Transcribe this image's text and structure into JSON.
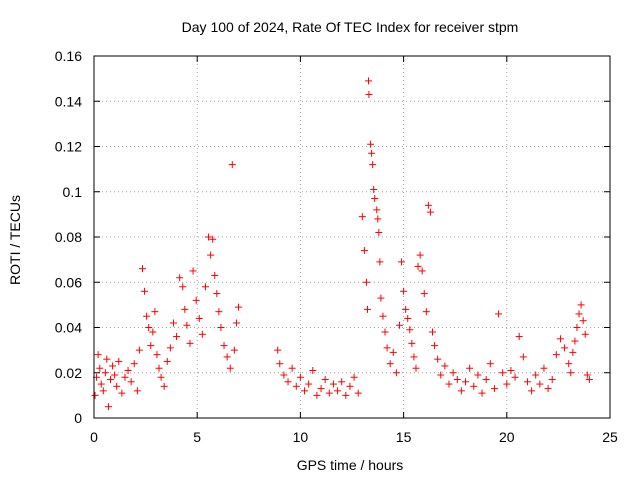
{
  "chart_data": {
    "type": "scatter",
    "title": "Day 100 of 2024, Rate Of TEC Index for receiver stpm",
    "xlabel": "GPS time / hours",
    "ylabel": "ROTI / TECUs",
    "xlim": [
      0,
      25
    ],
    "ylim": [
      0,
      0.16
    ],
    "x_ticks": [
      0,
      5,
      10,
      15,
      20,
      25
    ],
    "y_ticks": [
      0,
      0.02,
      0.04,
      0.06,
      0.08,
      0.1,
      0.12,
      0.14,
      0.16
    ],
    "x_tick_labels": [
      "0",
      "5",
      "10",
      "15",
      "20",
      "25"
    ],
    "y_tick_labels": [
      "0",
      "0.02",
      "0.04",
      "0.06",
      "0.08",
      "0.1",
      "0.12",
      "0.14",
      "0.16"
    ],
    "grid": true,
    "marker": "+",
    "colors": {
      "series": "#ff0000",
      "axis": "#000000",
      "grid": "#a0a0a0"
    },
    "series": [
      {
        "name": "ROTI",
        "points": [
          [
            0.05,
            0.01
          ],
          [
            0.12,
            0.018
          ],
          [
            0.2,
            0.028
          ],
          [
            0.28,
            0.022
          ],
          [
            0.35,
            0.015
          ],
          [
            0.45,
            0.012
          ],
          [
            0.55,
            0.02
          ],
          [
            0.62,
            0.026
          ],
          [
            0.7,
            0.005
          ],
          [
            0.8,
            0.017
          ],
          [
            0.9,
            0.023
          ],
          [
            1.0,
            0.019
          ],
          [
            1.1,
            0.014
          ],
          [
            1.2,
            0.025
          ],
          [
            1.35,
            0.011
          ],
          [
            1.5,
            0.018
          ],
          [
            1.65,
            0.021
          ],
          [
            1.8,
            0.016
          ],
          [
            1.95,
            0.024
          ],
          [
            2.1,
            0.012
          ],
          [
            2.2,
            0.03
          ],
          [
            2.35,
            0.066
          ],
          [
            2.45,
            0.056
          ],
          [
            2.55,
            0.045
          ],
          [
            2.65,
            0.04
          ],
          [
            2.75,
            0.032
          ],
          [
            2.85,
            0.038
          ],
          [
            2.95,
            0.047
          ],
          [
            3.05,
            0.028
          ],
          [
            3.15,
            0.022
          ],
          [
            3.25,
            0.018
          ],
          [
            3.4,
            0.014
          ],
          [
            3.55,
            0.025
          ],
          [
            3.7,
            0.031
          ],
          [
            3.85,
            0.042
          ],
          [
            4.0,
            0.036
          ],
          [
            4.15,
            0.062
          ],
          [
            4.3,
            0.058
          ],
          [
            4.4,
            0.048
          ],
          [
            4.5,
            0.041
          ],
          [
            4.65,
            0.033
          ],
          [
            4.8,
            0.065
          ],
          [
            4.95,
            0.052
          ],
          [
            5.1,
            0.044
          ],
          [
            5.25,
            0.037
          ],
          [
            5.4,
            0.058
          ],
          [
            5.55,
            0.08
          ],
          [
            5.65,
            0.072
          ],
          [
            5.75,
            0.079
          ],
          [
            5.85,
            0.063
          ],
          [
            5.95,
            0.055
          ],
          [
            6.05,
            0.047
          ],
          [
            6.15,
            0.04
          ],
          [
            6.3,
            0.032
          ],
          [
            6.45,
            0.027
          ],
          [
            6.6,
            0.022
          ],
          [
            6.7,
            0.112
          ],
          [
            6.8,
            0.03
          ],
          [
            6.9,
            0.042
          ],
          [
            7.0,
            0.049
          ],
          [
            8.9,
            0.03
          ],
          [
            9.0,
            0.024
          ],
          [
            9.2,
            0.019
          ],
          [
            9.4,
            0.016
          ],
          [
            9.6,
            0.022
          ],
          [
            9.8,
            0.014
          ],
          [
            10.0,
            0.018
          ],
          [
            10.2,
            0.012
          ],
          [
            10.4,
            0.015
          ],
          [
            10.6,
            0.021
          ],
          [
            10.8,
            0.01
          ],
          [
            11.0,
            0.013
          ],
          [
            11.2,
            0.017
          ],
          [
            11.4,
            0.011
          ],
          [
            11.6,
            0.015
          ],
          [
            11.8,
            0.012
          ],
          [
            12.0,
            0.016
          ],
          [
            12.2,
            0.01
          ],
          [
            12.4,
            0.014
          ],
          [
            12.6,
            0.018
          ],
          [
            12.8,
            0.011
          ],
          [
            13.0,
            0.089
          ],
          [
            13.1,
            0.074
          ],
          [
            13.2,
            0.06
          ],
          [
            13.25,
            0.048
          ],
          [
            13.3,
            0.149
          ],
          [
            13.32,
            0.143
          ],
          [
            13.4,
            0.121
          ],
          [
            13.45,
            0.117
          ],
          [
            13.5,
            0.112
          ],
          [
            13.55,
            0.101
          ],
          [
            13.6,
            0.097
          ],
          [
            13.7,
            0.092
          ],
          [
            13.75,
            0.088
          ],
          [
            13.8,
            0.082
          ],
          [
            13.85,
            0.069
          ],
          [
            13.9,
            0.053
          ],
          [
            14.0,
            0.045
          ],
          [
            14.1,
            0.038
          ],
          [
            14.2,
            0.031
          ],
          [
            14.35,
            0.024
          ],
          [
            14.5,
            0.029
          ],
          [
            14.65,
            0.02
          ],
          [
            14.8,
            0.041
          ],
          [
            14.9,
            0.069
          ],
          [
            15.0,
            0.056
          ],
          [
            15.1,
            0.048
          ],
          [
            15.2,
            0.044
          ],
          [
            15.3,
            0.039
          ],
          [
            15.4,
            0.033
          ],
          [
            15.5,
            0.027
          ],
          [
            15.6,
            0.022
          ],
          [
            15.7,
            0.067
          ],
          [
            15.8,
            0.072
          ],
          [
            15.9,
            0.065
          ],
          [
            16.0,
            0.055
          ],
          [
            16.1,
            0.047
          ],
          [
            16.2,
            0.094
          ],
          [
            16.3,
            0.091
          ],
          [
            16.4,
            0.038
          ],
          [
            16.5,
            0.032
          ],
          [
            16.65,
            0.026
          ],
          [
            16.8,
            0.019
          ],
          [
            17.0,
            0.023
          ],
          [
            17.2,
            0.015
          ],
          [
            17.4,
            0.02
          ],
          [
            17.6,
            0.017
          ],
          [
            17.8,
            0.012
          ],
          [
            18.0,
            0.016
          ],
          [
            18.2,
            0.022
          ],
          [
            18.4,
            0.014
          ],
          [
            18.6,
            0.019
          ],
          [
            18.8,
            0.011
          ],
          [
            19.0,
            0.017
          ],
          [
            19.2,
            0.024
          ],
          [
            19.4,
            0.013
          ],
          [
            19.6,
            0.046
          ],
          [
            19.8,
            0.02
          ],
          [
            20.0,
            0.015
          ],
          [
            20.2,
            0.021
          ],
          [
            20.4,
            0.018
          ],
          [
            20.6,
            0.036
          ],
          [
            20.8,
            0.027
          ],
          [
            21.0,
            0.016
          ],
          [
            21.2,
            0.012
          ],
          [
            21.4,
            0.019
          ],
          [
            21.6,
            0.015
          ],
          [
            21.8,
            0.022
          ],
          [
            22.0,
            0.013
          ],
          [
            22.2,
            0.017
          ],
          [
            22.4,
            0.028
          ],
          [
            22.6,
            0.035
          ],
          [
            22.8,
            0.031
          ],
          [
            23.0,
            0.024
          ],
          [
            23.1,
            0.02
          ],
          [
            23.2,
            0.029
          ],
          [
            23.3,
            0.034
          ],
          [
            23.4,
            0.04
          ],
          [
            23.5,
            0.046
          ],
          [
            23.6,
            0.05
          ],
          [
            23.7,
            0.043
          ],
          [
            23.8,
            0.037
          ],
          [
            23.9,
            0.019
          ],
          [
            24.0,
            0.017
          ]
        ]
      }
    ]
  }
}
